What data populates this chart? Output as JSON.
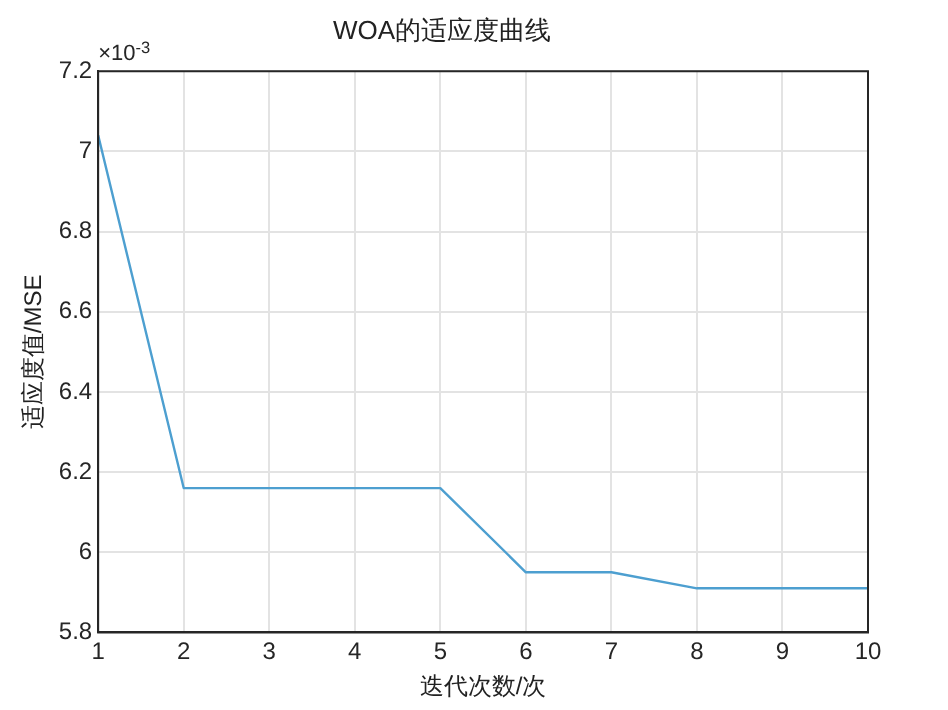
{
  "chart_data": {
    "type": "line",
    "title": "WOA的适应度曲线",
    "xlabel": "迭代次数/次",
    "ylabel": "适应度值/MSE",
    "x": [
      1,
      2,
      3,
      4,
      5,
      6,
      7,
      8,
      9,
      10
    ],
    "series": [
      {
        "color": "#4d9fd0",
        "values": [
          7.04,
          6.16,
          6.16,
          6.16,
          6.16,
          5.95,
          5.95,
          5.91,
          5.91,
          5.91
        ]
      }
    ],
    "xlim": [
      1,
      10
    ],
    "xticks": [
      1,
      2,
      3,
      4,
      5,
      6,
      7,
      8,
      9,
      10
    ],
    "ylim": [
      5.8,
      7.2
    ],
    "yticks": [
      5.8,
      6,
      6.2,
      6.4,
      6.6,
      6.8,
      7,
      7.2
    ],
    "annotations": [
      "×10$^{-3}$"
    ],
    "grid": true,
    "marker": "none",
    "line_style": "solid"
  }
}
